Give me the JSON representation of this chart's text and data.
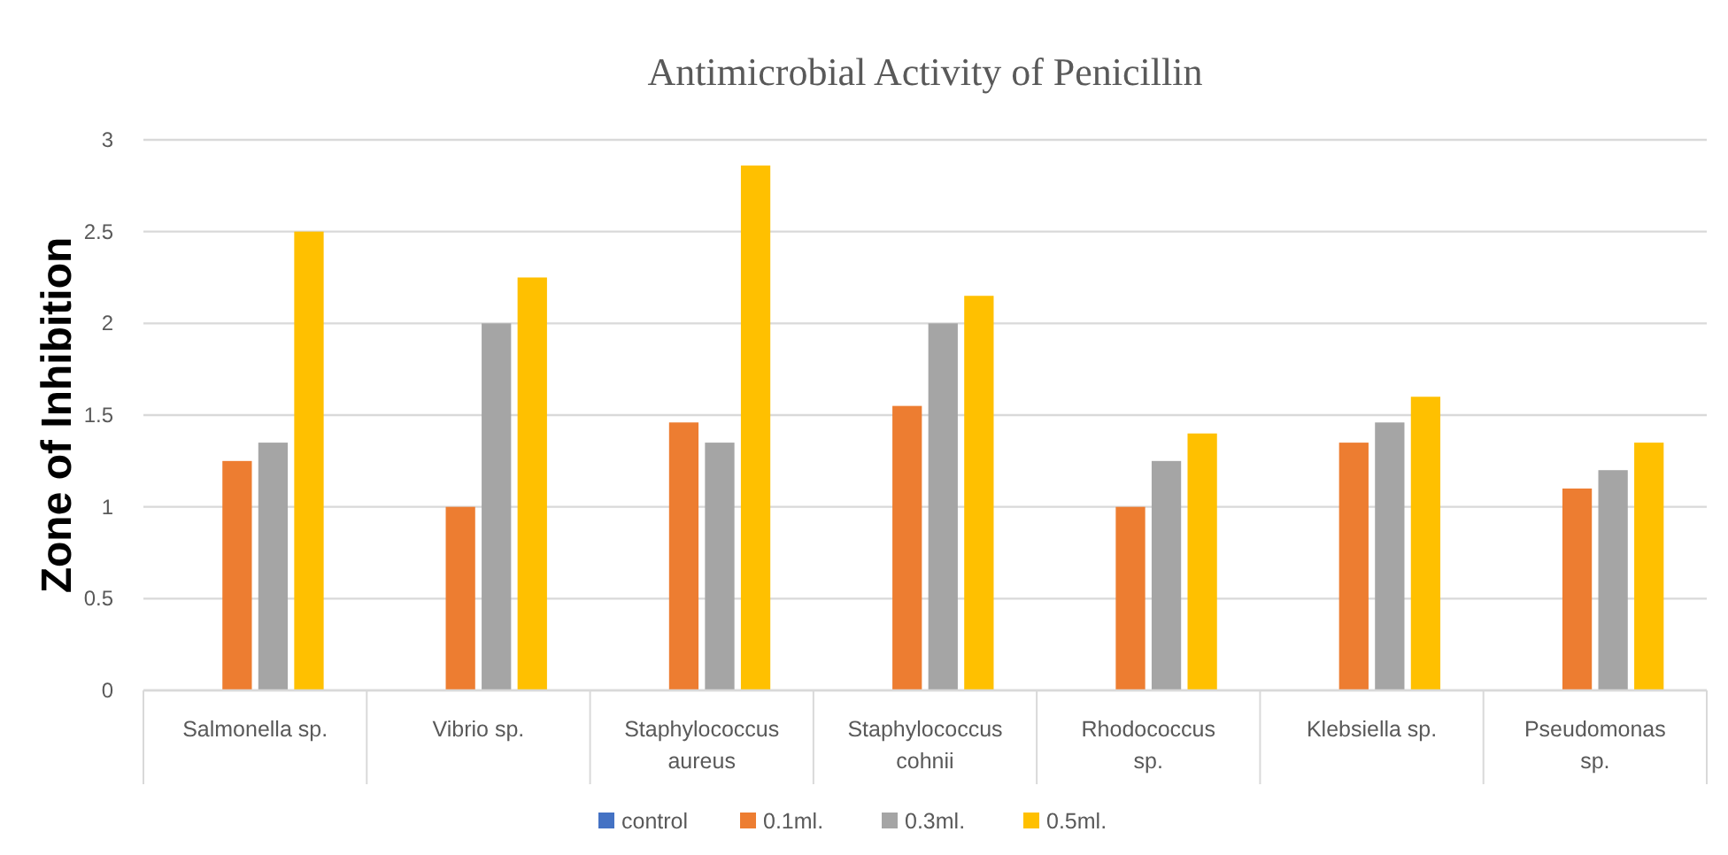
{
  "chart_data": {
    "type": "bar",
    "title": "Antimicrobial Activity of Penicillin",
    "ylabel": "Zone of Inhibition",
    "categories": [
      "Salmonella sp.",
      "Vibrio sp.",
      "Staphylococcus aureus",
      "Staphylococcus cohnii",
      "Rhodococcus sp.",
      "Klebsiella sp.",
      "Pseudomonas sp."
    ],
    "series": [
      {
        "name": "control",
        "color": "#4472c4",
        "values": [
          0,
          0,
          0,
          0,
          0,
          0,
          0
        ]
      },
      {
        "name": "0.1ml.",
        "color": "#ed7d31",
        "values": [
          1.25,
          1,
          1.46,
          1.55,
          1,
          1.35,
          1.1
        ]
      },
      {
        "name": "0.3ml.",
        "color": "#a5a5a5",
        "values": [
          1.35,
          2,
          1.35,
          2,
          1.25,
          1.46,
          1.2
        ]
      },
      {
        "name": "0.5ml.",
        "color": "#ffc000",
        "values": [
          2.5,
          2.25,
          2.86,
          2.15,
          1.4,
          1.6,
          1.35
        ]
      }
    ],
    "ylim": [
      0,
      3
    ],
    "yticks": [
      0,
      0.5,
      1,
      1.5,
      2,
      2.5,
      3
    ],
    "grid": "y",
    "legend": "bottom"
  }
}
